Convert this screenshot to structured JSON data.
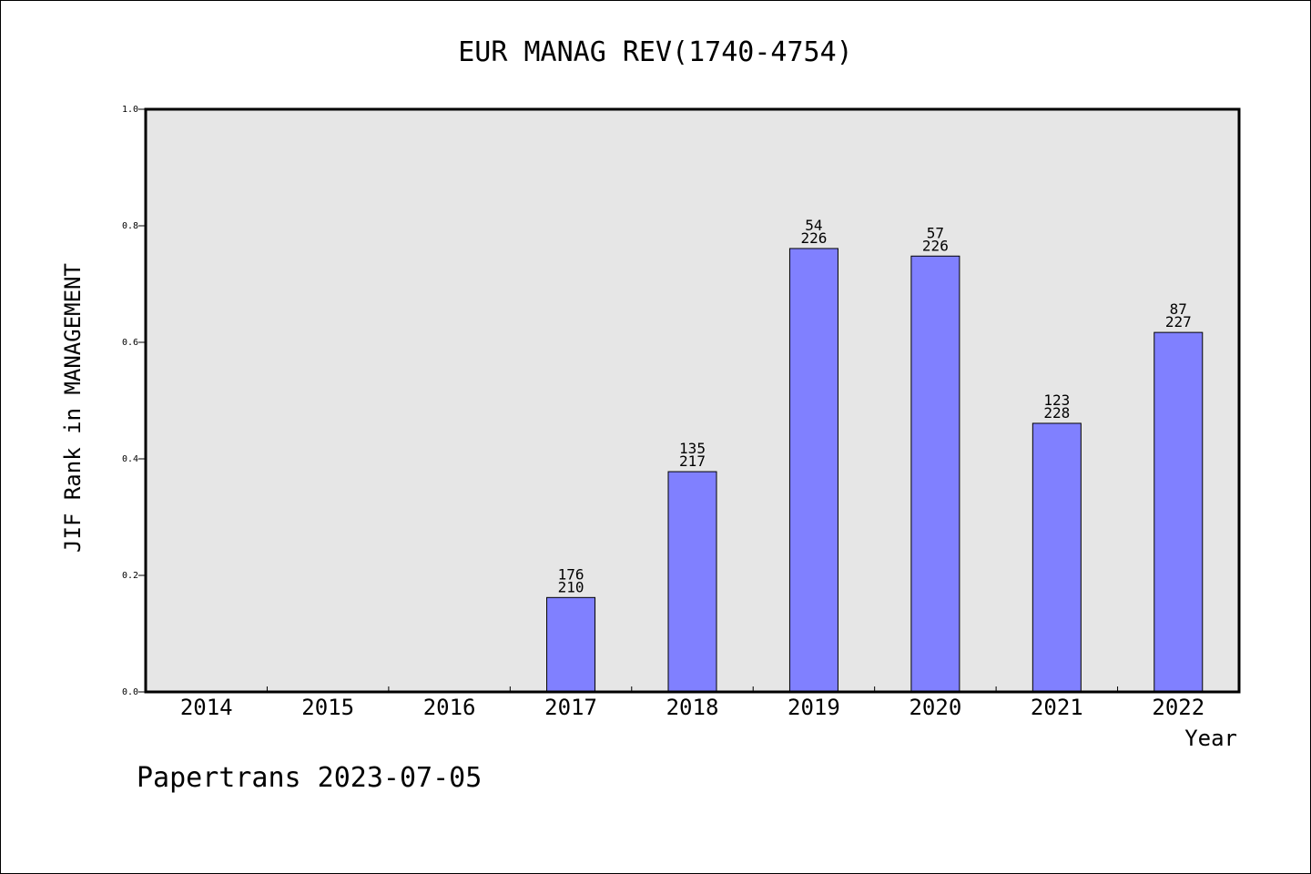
{
  "chart_data": {
    "type": "bar",
    "title": "EUR MANAG REV(1740-4754)",
    "xlabel": "Year",
    "ylabel": "JIF Rank in MANAGEMENT",
    "ylim": [
      0,
      1.0
    ],
    "yticks": [
      "0.0",
      "0.2",
      "0.4",
      "0.6",
      "0.8",
      "1.0"
    ],
    "grid": false,
    "legend": "none",
    "categories": [
      "2014",
      "2015",
      "2016",
      "2017",
      "2018",
      "2019",
      "2020",
      "2021",
      "2022"
    ],
    "values": [
      null,
      null,
      null,
      0.162,
      0.378,
      0.761,
      0.748,
      0.461,
      0.617
    ],
    "labels": [
      null,
      null,
      null,
      {
        "rank": "176",
        "total": "210"
      },
      {
        "rank": "135",
        "total": "217"
      },
      {
        "rank": "54",
        "total": "226"
      },
      {
        "rank": "57",
        "total": "226"
      },
      {
        "rank": "123",
        "total": "228"
      },
      {
        "rank": "87",
        "total": "227"
      }
    ],
    "colors": {
      "bar": "#8080ff",
      "plot_bg": "#e6e6e6",
      "axis": "#000000"
    }
  },
  "footer": "Papertrans 2023-07-05"
}
